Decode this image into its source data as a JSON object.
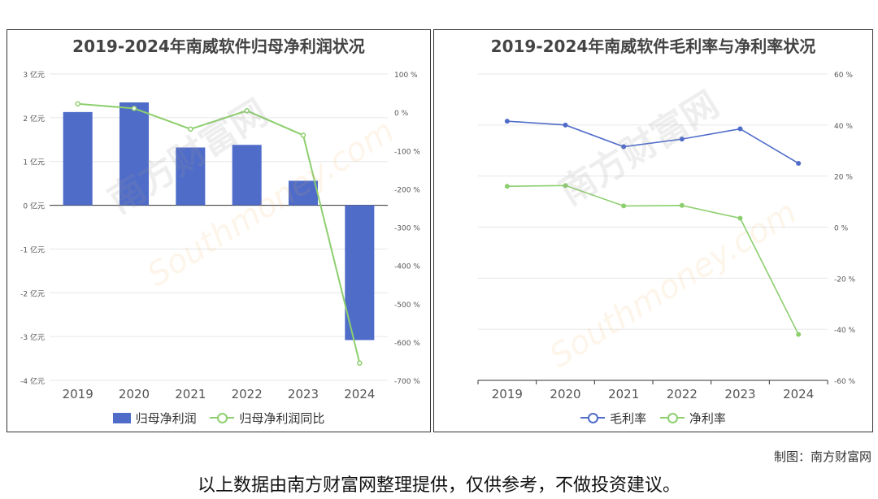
{
  "colors": {
    "bar": "#4F6CC9",
    "line1": "#4F6CC9",
    "line2": "#8DCF6E",
    "grid": "#e6e6e6",
    "axis": "#555555"
  },
  "watermark": {
    "text": "南方财富网",
    "url": "Southmoney.com"
  },
  "chart_data": [
    {
      "type": "bar",
      "title": "2019-2024年南威软件归母净利润状况",
      "categories": [
        "2019",
        "2020",
        "2021",
        "2022",
        "2023",
        "2024"
      ],
      "series": [
        {
          "name": "归母净利润",
          "type": "bar",
          "axis": "left",
          "unit": "亿元",
          "values": [
            2.13,
            2.35,
            1.32,
            1.38,
            0.56,
            -3.08
          ]
        },
        {
          "name": "归母净利润同比",
          "type": "line",
          "axis": "right",
          "unit": "%",
          "values": [
            22,
            10,
            -44,
            4,
            -60,
            -655
          ]
        }
      ],
      "left_ticks": [
        "3 亿元",
        "2 亿元",
        "1 亿元",
        "0 亿元",
        "-1 亿元",
        "-2 亿元",
        "-3 亿元",
        "-4 亿元"
      ],
      "right_ticks": [
        "100 %",
        "0 %",
        "-100 %",
        "-200 %",
        "-300 %",
        "-400 %",
        "-500 %",
        "-600 %",
        "-700 %"
      ],
      "ylim_left": [
        -4,
        3
      ],
      "ylim_right": [
        -700,
        100
      ],
      "grid": true,
      "legend": "bottom"
    },
    {
      "type": "line",
      "title": "2019-2024年南威软件毛利率与净利率状况",
      "categories": [
        "2019",
        "2020",
        "2021",
        "2022",
        "2023",
        "2024"
      ],
      "series": [
        {
          "name": "毛利率",
          "unit": "%",
          "values": [
            41.5,
            40,
            31.5,
            34.5,
            38.5,
            25
          ]
        },
        {
          "name": "净利率",
          "unit": "%",
          "values": [
            16,
            16.3,
            8.3,
            8.5,
            3.5,
            -42
          ]
        }
      ],
      "right_ticks": [
        "60 %",
        "40 %",
        "20 %",
        "0 %",
        "-20 %",
        "-40 %",
        "-60 %"
      ],
      "ylim": [
        -60,
        60
      ],
      "grid": true,
      "legend": "bottom"
    }
  ],
  "credit": "制图：南方财富网",
  "footer": "以上数据由南方财富网整理提供，仅供参考，不做投资建议。"
}
